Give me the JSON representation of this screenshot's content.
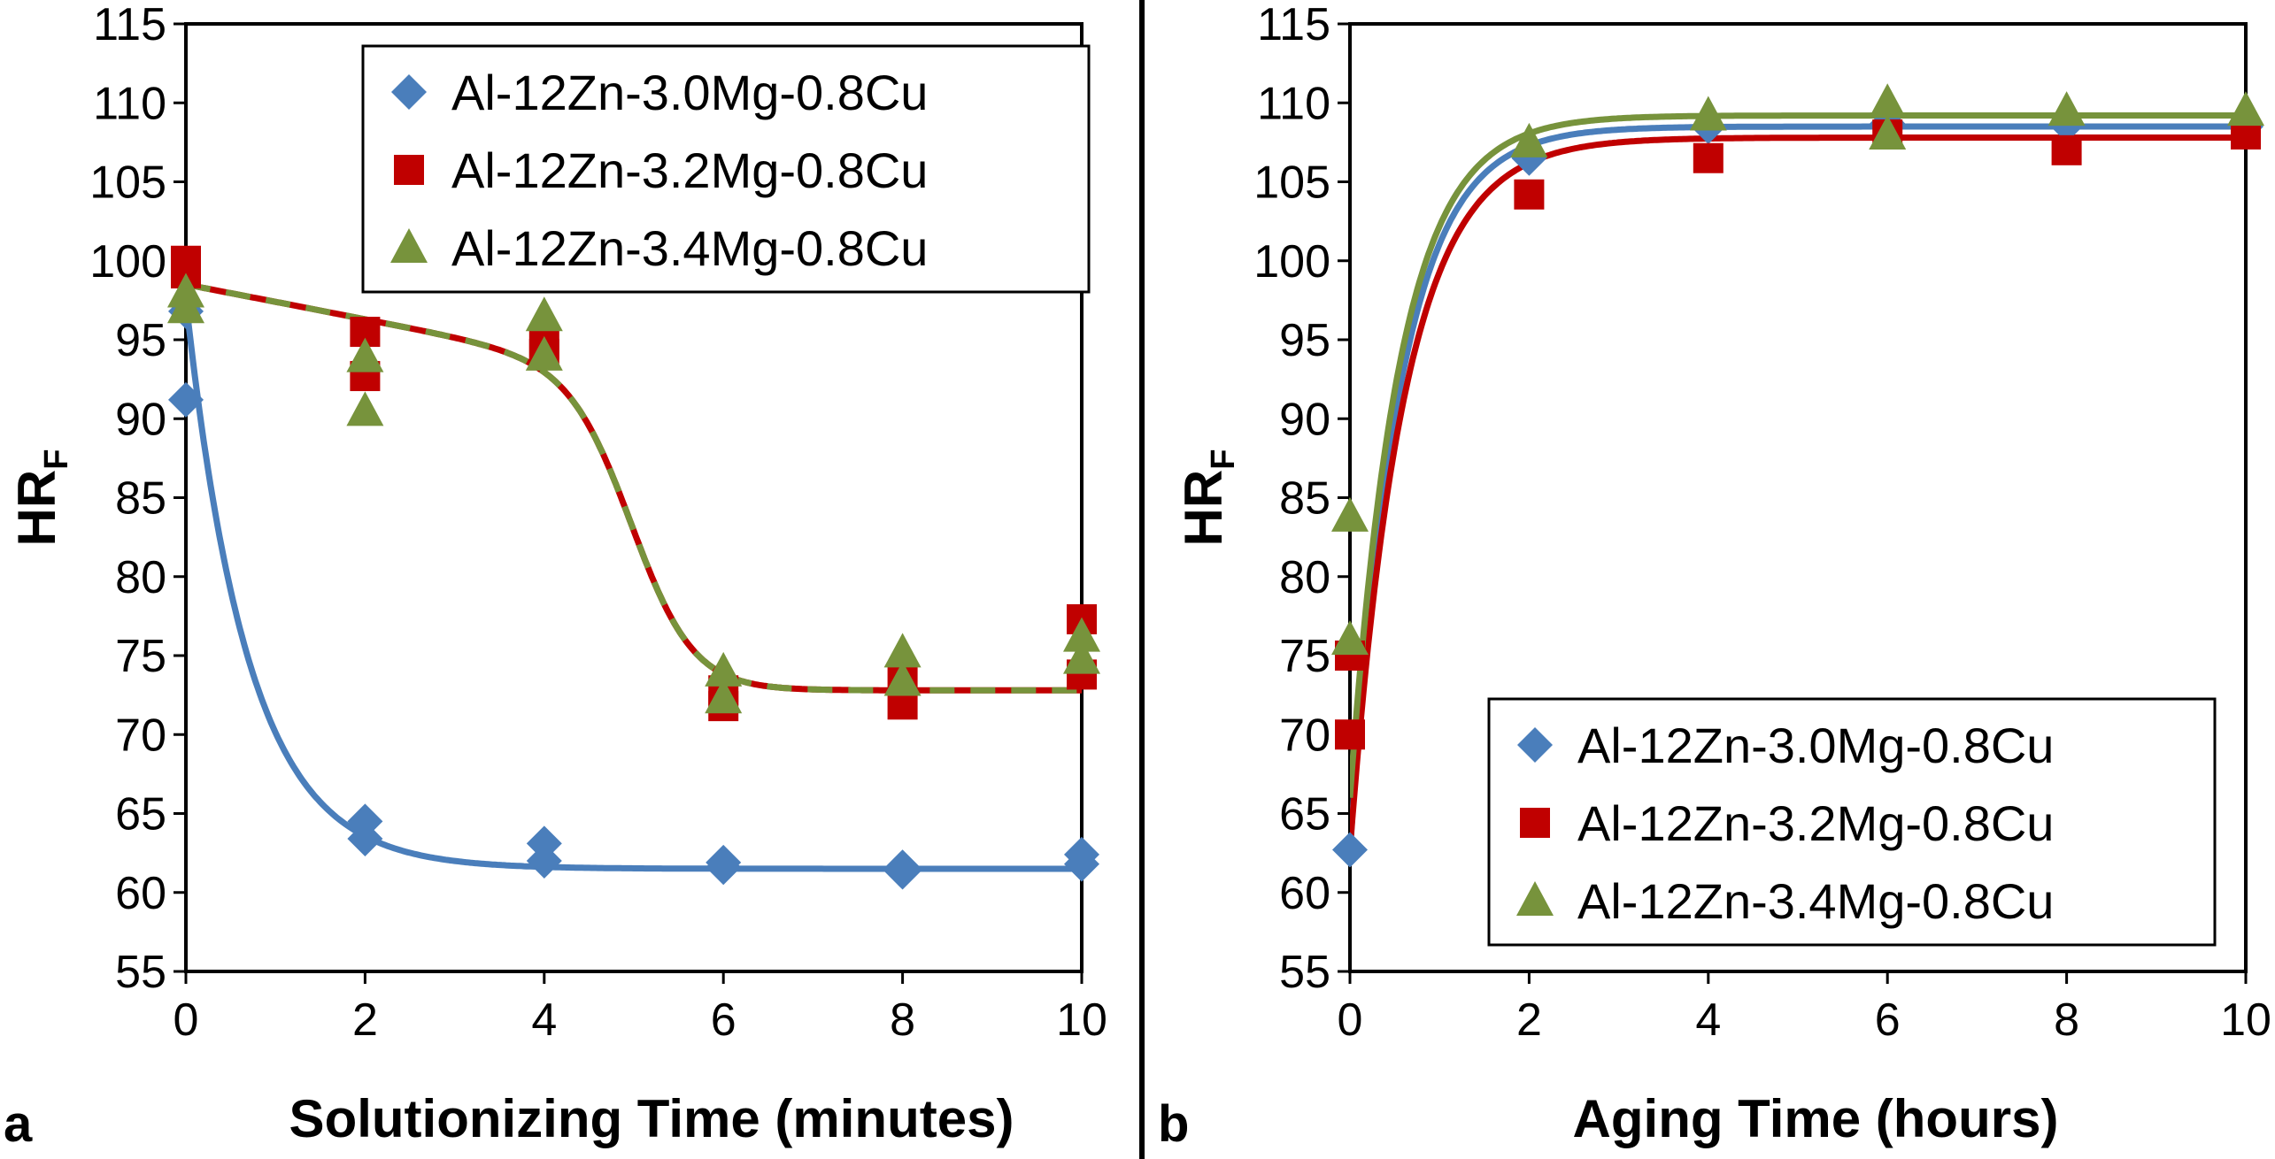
{
  "figure": {
    "panels": [
      "a",
      "b"
    ]
  },
  "chart_data": [
    {
      "type": "scatter",
      "panel_label": "a",
      "xlabel": "Solutionizing Time (minutes)",
      "ylabel": "HR",
      "ylabel_sub": "F",
      "xlim": [
        0,
        10
      ],
      "ylim": [
        55,
        115
      ],
      "xticks": [
        0,
        2,
        4,
        6,
        8,
        10
      ],
      "yticks": [
        55,
        60,
        65,
        70,
        75,
        80,
        85,
        90,
        95,
        100,
        105,
        110,
        115
      ],
      "legend_position": "top-right",
      "grid": false,
      "series": [
        {
          "name": "Al-12Zn-3.0Mg-0.8Cu",
          "marker": "diamond",
          "color": "#4a7ebb",
          "points": [
            [
              0,
              96.8
            ],
            [
              0,
              91.2
            ],
            [
              2,
              64.5
            ],
            [
              2,
              63.4
            ],
            [
              4,
              63.1
            ],
            [
              4,
              62.0
            ],
            [
              6,
              61.9
            ],
            [
              6,
              61.6
            ],
            [
              8,
              61.6
            ],
            [
              8,
              61.3
            ],
            [
              10,
              62.4
            ],
            [
              10,
              61.8
            ]
          ],
          "fit": {
            "kind": "exp",
            "baseline": 61.5,
            "amplitude": 36.0,
            "tau": 0.7
          }
        },
        {
          "name": "Al-12Zn-3.2Mg-0.8Cu",
          "marker": "square",
          "color": "#c00000",
          "points": [
            [
              0,
              100.0
            ],
            [
              0,
              99.2
            ],
            [
              2,
              95.5
            ],
            [
              2,
              92.7
            ],
            [
              4,
              94.7
            ],
            [
              4,
              94.1
            ],
            [
              6,
              72.8
            ],
            [
              6,
              71.8
            ],
            [
              8,
              73.5
            ],
            [
              8,
              71.9
            ],
            [
              10,
              77.3
            ],
            [
              10,
              73.8
            ]
          ],
          "fit": {
            "kind": "sigmoid",
            "linear_a": 98.5,
            "linear_b": -1.1,
            "baseline": 72.8,
            "center": 5.0,
            "width": 0.35
          }
        },
        {
          "name": "Al-12Zn-3.4Mg-0.8Cu",
          "marker": "triangle",
          "color": "#77933c",
          "points": [
            [
              0,
              98.0
            ],
            [
              0,
              97.0
            ],
            [
              2,
              93.9
            ],
            [
              2,
              90.5
            ],
            [
              4,
              96.5
            ],
            [
              4,
              94.0
            ],
            [
              6,
              74.0
            ],
            [
              6,
              72.3
            ],
            [
              8,
              75.2
            ],
            [
              8,
              73.4
            ],
            [
              10,
              76.2
            ],
            [
              10,
              74.8
            ]
          ],
          "fit": {
            "kind": "sigmoid",
            "linear_a": 98.5,
            "linear_b": -1.1,
            "baseline": 72.8,
            "center": 5.0,
            "width": 0.35,
            "dashed": true
          }
        }
      ]
    },
    {
      "type": "scatter",
      "panel_label": "b",
      "xlabel": "Aging Time (hours)",
      "ylabel": "HR",
      "ylabel_sub": "F",
      "xlim": [
        0,
        10
      ],
      "ylim": [
        55,
        115
      ],
      "xticks": [
        0,
        2,
        4,
        6,
        8,
        10
      ],
      "yticks": [
        55,
        60,
        65,
        70,
        75,
        80,
        85,
        90,
        95,
        100,
        105,
        110,
        115
      ],
      "legend_position": "bottom-right",
      "grid": false,
      "series": [
        {
          "name": "Al-12Zn-3.0Mg-0.8Cu",
          "marker": "diamond",
          "color": "#4a7ebb",
          "points": [
            [
              0,
              62.7
            ],
            [
              2,
              106.5
            ],
            [
              4,
              108.5
            ],
            [
              6,
              108.7
            ],
            [
              8,
              108.6
            ],
            [
              10,
              108.5
            ]
          ],
          "fit": {
            "kind": "rise",
            "start": 62.7,
            "plateau": 108.5,
            "tau": 0.55
          }
        },
        {
          "name": "Al-12Zn-3.2Mg-0.8Cu",
          "marker": "square",
          "color": "#c00000",
          "points": [
            [
              0,
              75.0
            ],
            [
              0,
              70.0
            ],
            [
              2,
              104.2
            ],
            [
              4,
              106.5
            ],
            [
              6,
              108.0
            ],
            [
              8,
              107.0
            ],
            [
              10,
              108.0
            ]
          ],
          "fit": {
            "kind": "rise",
            "start": 62.7,
            "plateau": 107.8,
            "tau": 0.6
          }
        },
        {
          "name": "Al-12Zn-3.4Mg-0.8Cu",
          "marker": "triangle",
          "color": "#77933c",
          "points": [
            [
              0,
              83.8
            ],
            [
              0,
              76.0
            ],
            [
              2,
              107.5
            ],
            [
              4,
              109.2
            ],
            [
              6,
              110.0
            ],
            [
              6,
              108.0
            ],
            [
              8,
              109.5
            ],
            [
              10,
              109.5
            ]
          ],
          "fit": {
            "kind": "rise",
            "start": 66.0,
            "plateau": 109.2,
            "tau": 0.55
          }
        }
      ]
    }
  ]
}
